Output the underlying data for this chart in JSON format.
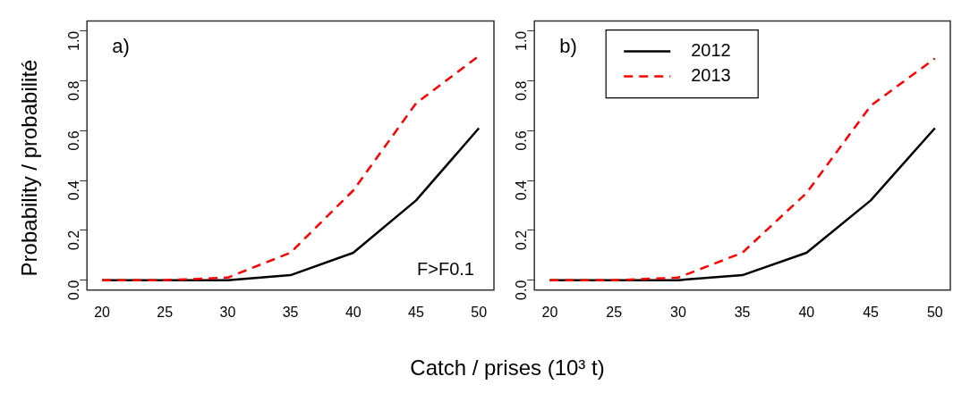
{
  "chart_data": [
    {
      "type": "line",
      "ylabel": "Probability / probabilité",
      "xlabel": "Catch / prises (10³ t)",
      "annotations": [
        "a)",
        "F>F0.1"
      ],
      "x": [
        20,
        25,
        30,
        35,
        40,
        45,
        50
      ],
      "xlim": [
        18.8,
        51.2
      ],
      "xticks": [
        20,
        25,
        30,
        35,
        40,
        45,
        50
      ],
      "ylim": [
        -0.04,
        1.04
      ],
      "yticks": [
        {
          "value": 0,
          "label": "0.0"
        },
        {
          "value": 0.2,
          "label": "0.2"
        },
        {
          "value": 0.4,
          "label": "0.4"
        },
        {
          "value": 0.6,
          "label": "0.6"
        },
        {
          "value": 0.8,
          "label": "0.8"
        },
        {
          "value": 1,
          "label": "1.0"
        }
      ],
      "grid": false,
      "legend": false,
      "marker": "none",
      "series": [
        {
          "color": "#000000",
          "line_style": "solid",
          "values": [
            0,
            0,
            0,
            0.02,
            0.11,
            0.32,
            0.61
          ]
        },
        {
          "color": "#ff0000",
          "line_style": "dashed",
          "values": [
            0,
            0,
            0.01,
            0.11,
            0.36,
            0.71,
            0.9
          ]
        }
      ]
    },
    {
      "type": "line",
      "annotations": [
        "b)"
      ],
      "x": [
        20,
        25,
        30,
        35,
        40,
        45,
        50
      ],
      "xlim": [
        18.8,
        51.2
      ],
      "xticks": [
        20,
        25,
        30,
        35,
        40,
        45,
        50
      ],
      "ylim": [
        -0.04,
        1.04
      ],
      "yticks": [
        {
          "value": 0,
          "label": "0.0"
        },
        {
          "value": 0.2,
          "label": "0.2"
        },
        {
          "value": 0.4,
          "label": "0.4"
        },
        {
          "value": 0.6,
          "label": "0.6"
        },
        {
          "value": 0.8,
          "label": "0.8"
        },
        {
          "value": 1,
          "label": "1.0"
        }
      ],
      "grid": false,
      "legend": "top left",
      "marker": "none",
      "series": [
        {
          "name": "2012",
          "color": "#000000",
          "line_style": "solid",
          "values": [
            0,
            0,
            0,
            0.02,
            0.11,
            0.32,
            0.61
          ]
        },
        {
          "name": "2013",
          "color": "#ff0000",
          "line_style": "dashed",
          "values": [
            0,
            0,
            0.01,
            0.11,
            0.35,
            0.7,
            0.89
          ]
        }
      ]
    }
  ]
}
